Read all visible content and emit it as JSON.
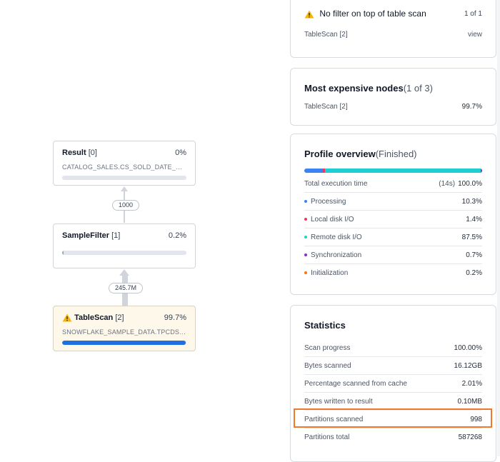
{
  "graph": {
    "nodes": [
      {
        "name": "Result",
        "index": "[0]",
        "percent": "0%",
        "detail": "CATALOG_SALES.CS_SOLD_DATE_SK,C...",
        "progress": 0,
        "warning": false
      },
      {
        "name": "SampleFilter",
        "index": "[1]",
        "percent": "0.2%",
        "detail": "",
        "progress": 0.002,
        "warning": false
      },
      {
        "name": "TableScan",
        "index": "[2]",
        "percent": "99.7%",
        "detail": "SNOWFLAKE_SAMPLE_DATA.TPCDS_SF...",
        "progress": 0.997,
        "warning": true
      }
    ],
    "edges": [
      {
        "label": "1000"
      },
      {
        "label": "245.7M"
      }
    ]
  },
  "alerts": {
    "title": "No filter on top of table scan",
    "pager": "1 of 1",
    "node": "TableScan [2]",
    "action": "view"
  },
  "expensive": {
    "title": "Most expensive nodes",
    "count": "(1 of 3)",
    "items": [
      {
        "node": "TableScan [2]",
        "percent": "99.7%"
      }
    ]
  },
  "profile": {
    "title": "Profile overview",
    "status": "(Finished)",
    "bar": [
      {
        "fraction": 0.103,
        "color": "#3b82f6"
      },
      {
        "fraction": 0.014,
        "color": "#e63b63"
      },
      {
        "fraction": 0.875,
        "color": "#1fcfcf"
      },
      {
        "fraction": 0.007,
        "color": "#8b2fc9"
      },
      {
        "fraction": 0.002,
        "color": "#f97316"
      }
    ],
    "total_label": "Total execution time",
    "total_duration": "(14s)",
    "total_value": "100.0%",
    "rows": [
      {
        "label": "Processing",
        "value": "10.3%",
        "color": "#3b82f6"
      },
      {
        "label": "Local disk I/O",
        "value": "1.4%",
        "color": "#e63b63"
      },
      {
        "label": "Remote disk I/O",
        "value": "87.5%",
        "color": "#1fcfcf"
      },
      {
        "label": "Synchronization",
        "value": "0.7%",
        "color": "#8b2fc9"
      },
      {
        "label": "Initialization",
        "value": "0.2%",
        "color": "#f97316"
      }
    ]
  },
  "statistics": {
    "title": "Statistics",
    "rows": [
      {
        "label": "Scan progress",
        "value": "100.00%"
      },
      {
        "label": "Bytes scanned",
        "value": "16.12GB"
      },
      {
        "label": "Percentage scanned from cache",
        "value": "2.01%"
      },
      {
        "label": "Bytes written to result",
        "value": "0.10MB"
      },
      {
        "label": "Partitions scanned",
        "value": "998"
      },
      {
        "label": "Partitions total",
        "value": "587268"
      }
    ]
  }
}
